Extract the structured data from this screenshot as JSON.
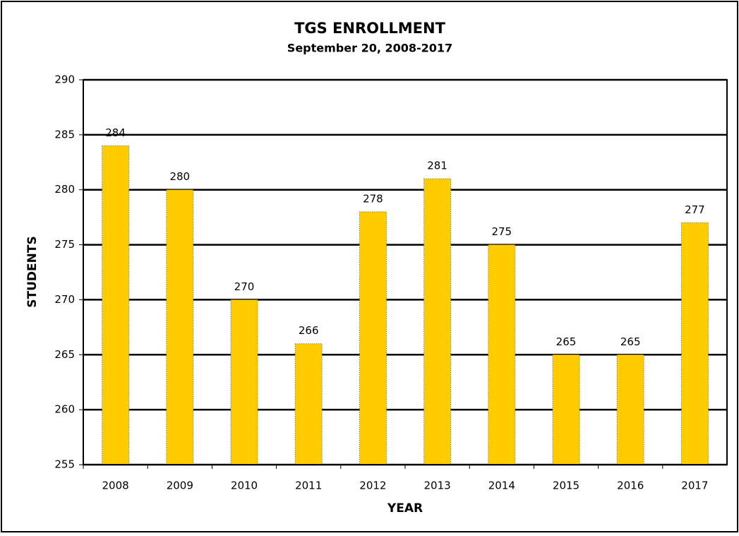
{
  "chart_data": {
    "type": "bar",
    "title": "TGS ENROLLMENT",
    "subtitle": "September 20, 2008-2017",
    "x_label": "YEAR",
    "y_label": "STUDENTS",
    "categories": [
      "2008",
      "2009",
      "2010",
      "2011",
      "2012",
      "2013",
      "2014",
      "2015",
      "2016",
      "2017"
    ],
    "values": [
      284,
      280,
      270,
      266,
      278,
      281,
      275,
      265,
      265,
      277
    ],
    "color": "#ffcc00",
    "ylim": [
      255,
      290
    ],
    "yticks": [
      255,
      260,
      265,
      270,
      275,
      280,
      285,
      290
    ],
    "grid": true
  }
}
